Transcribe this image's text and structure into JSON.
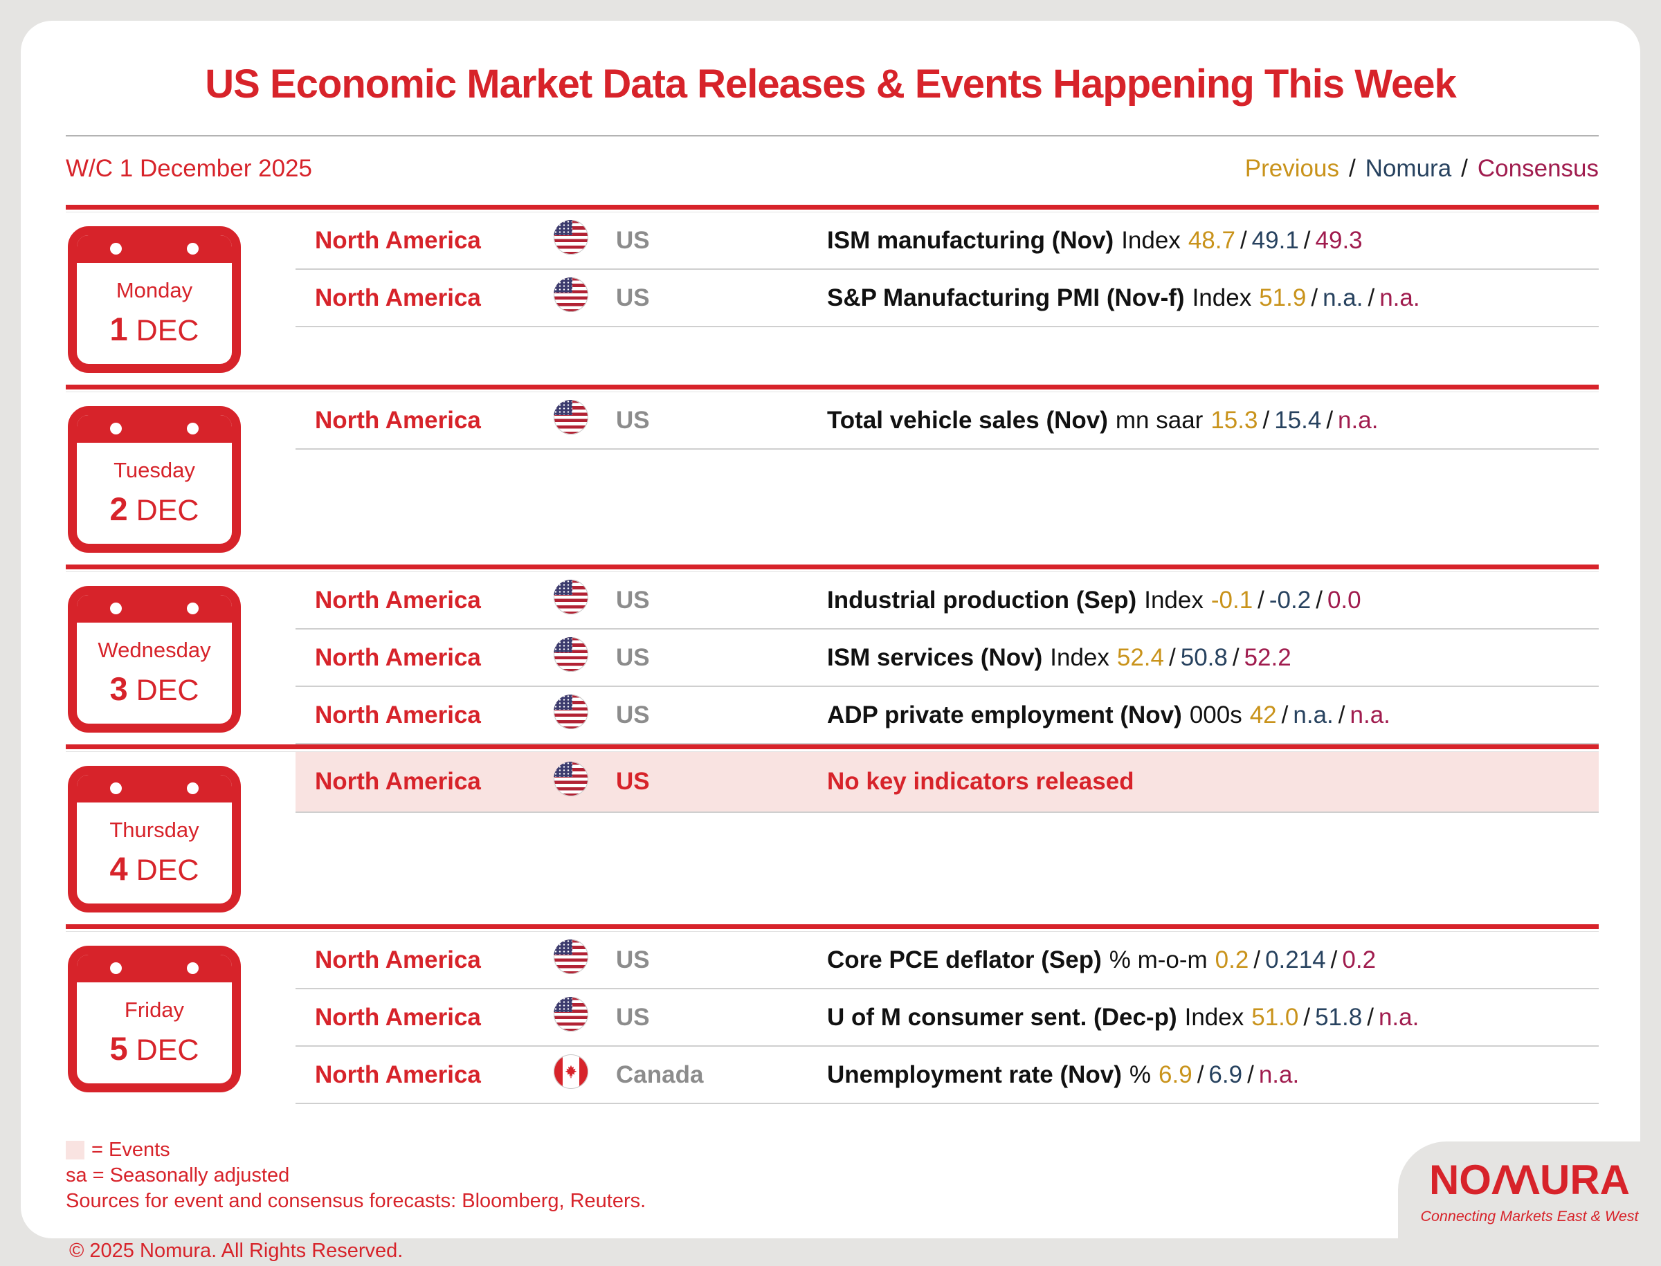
{
  "title": "US Economic Market Data Releases & Events Happening This Week",
  "week_label": "W/C 1 December 2025",
  "columns_legend": {
    "previous": "Previous",
    "nomura": "Nomura",
    "consensus": "Consensus",
    "slash": "/"
  },
  "colors": {
    "brand_red": "#D7232A",
    "previous_gold": "#C9931B",
    "nomura_navy": "#27425F",
    "consensus_maroon": "#A01C4E",
    "country_gray": "#8C8C8C",
    "events_highlight_pink": "#F9E3E1"
  },
  "days": [
    {
      "day_name": "Monday",
      "day_number": "1",
      "month_label": "DEC",
      "rows": [
        {
          "region": "North America",
          "flag": "us",
          "country": "US",
          "event": "ISM manufacturing (Nov)",
          "unit": "Index",
          "previous": "48.7",
          "nomura": "49.1",
          "consensus": "49.3",
          "highlight": false
        },
        {
          "region": "North America",
          "flag": "us",
          "country": "US",
          "event": "S&P Manufacturing PMI (Nov-f)",
          "unit": "Index",
          "previous": "51.9",
          "nomura": "n.a.",
          "consensus": "n.a.",
          "highlight": false
        }
      ]
    },
    {
      "day_name": "Tuesday",
      "day_number": "2",
      "month_label": "DEC",
      "rows": [
        {
          "region": "North America",
          "flag": "us",
          "country": "US",
          "event": "Total vehicle sales (Nov)",
          "unit": "mn saar",
          "previous": "15.3",
          "nomura": "15.4",
          "consensus": "n.a.",
          "highlight": false
        }
      ]
    },
    {
      "day_name": "Wednesday",
      "day_number": "3",
      "month_label": "DEC",
      "rows": [
        {
          "region": "North America",
          "flag": "us",
          "country": "US",
          "event": "Industrial production (Sep)",
          "unit": "Index",
          "previous": "-0.1",
          "nomura": "-0.2",
          "consensus": "0.0",
          "highlight": false
        },
        {
          "region": "North America",
          "flag": "us",
          "country": "US",
          "event": "ISM services (Nov)",
          "unit": "Index",
          "previous": "52.4",
          "nomura": "50.8",
          "consensus": "52.2",
          "highlight": false
        },
        {
          "region": "North America",
          "flag": "us",
          "country": "US",
          "event": "ADP private employment (Nov)",
          "unit": "000s",
          "previous": "42",
          "nomura": "n.a.",
          "consensus": "n.a.",
          "highlight": false
        }
      ]
    },
    {
      "day_name": "Thursday",
      "day_number": "4",
      "month_label": "DEC",
      "rows": [
        {
          "region": "North America",
          "flag": "us",
          "country": "US",
          "event": "No key indicators released",
          "unit": "",
          "previous": "",
          "nomura": "",
          "consensus": "",
          "highlight": true
        }
      ]
    },
    {
      "day_name": "Friday",
      "day_number": "5",
      "month_label": "DEC",
      "rows": [
        {
          "region": "North America",
          "flag": "us",
          "country": "US",
          "event": "Core PCE deflator (Sep)",
          "unit": "% m-o-m",
          "previous": "0.2",
          "nomura": "0.214",
          "consensus": "0.2",
          "highlight": false
        },
        {
          "region": "North America",
          "flag": "us",
          "country": "US",
          "event": "U of M consumer sent. (Dec-p)",
          "unit": "Index",
          "previous": "51.0",
          "nomura": "51.8",
          "consensus": "n.a.",
          "highlight": false
        },
        {
          "region": "North America",
          "flag": "ca",
          "country": "Canada",
          "event": "Unemployment rate (Nov)",
          "unit": "%",
          "previous": "6.9",
          "nomura": "6.9",
          "consensus": "n.a.",
          "highlight": false
        }
      ]
    }
  ],
  "footer": {
    "events_legend": "= Events",
    "sa_legend": "sa = Seasonally adjusted",
    "sources": "Sources for event and consensus forecasts: Bloomberg, Reuters.",
    "copyright": "© 2025 Nomura. All Rights Reserved.",
    "logo": {
      "wordmark_pre": "NO",
      "wordmark_m": "ΛΛ",
      "wordmark_post": "URA",
      "tagline": "Connecting Markets East & West"
    }
  }
}
